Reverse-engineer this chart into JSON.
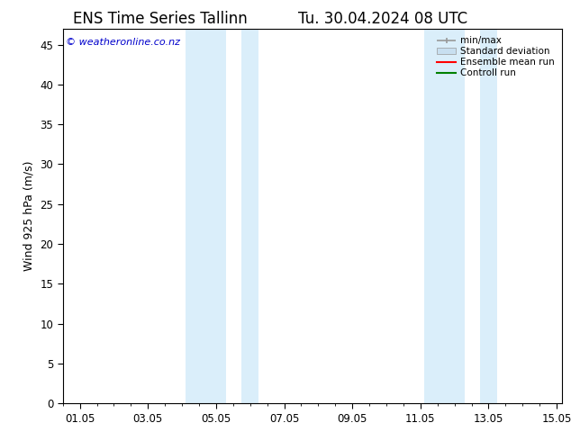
{
  "title_left": "ENS Time Series Tallinn",
  "title_right": "Tu. 30.04.2024 08 UTC",
  "ylabel": "Wind 925 hPa (m/s)",
  "watermark": "© weatheronline.co.nz",
  "xlim_start": 0.0,
  "xlim_end": 14.67,
  "ylim_bottom": 0,
  "ylim_top": 47,
  "yticks": [
    0,
    5,
    10,
    15,
    20,
    25,
    30,
    35,
    40,
    45
  ],
  "xtick_labels": [
    "01.05",
    "03.05",
    "05.05",
    "07.05",
    "09.05",
    "11.05",
    "13.05",
    "15.05"
  ],
  "xtick_positions": [
    0.5,
    2.5,
    4.5,
    6.5,
    8.5,
    10.5,
    12.5,
    14.5
  ],
  "shaded_bands": [
    {
      "x_start": 3.6,
      "x_end": 4.8,
      "color": "#daeefa"
    },
    {
      "x_start": 5.25,
      "x_end": 5.75,
      "color": "#daeefa"
    },
    {
      "x_start": 10.6,
      "x_end": 11.8,
      "color": "#daeefa"
    },
    {
      "x_start": 12.25,
      "x_end": 12.75,
      "color": "#daeefa"
    }
  ],
  "legend_items": [
    {
      "label": "min/max",
      "color": "#aaaaaa",
      "style": "minmax"
    },
    {
      "label": "Standard deviation",
      "color": "#c8dff0",
      "style": "rect"
    },
    {
      "label": "Ensemble mean run",
      "color": "red",
      "style": "line"
    },
    {
      "label": "Controll run",
      "color": "green",
      "style": "line"
    }
  ],
  "background_color": "#ffffff",
  "plot_bg_color": "#ffffff",
  "title_fontsize": 12,
  "axis_fontsize": 9,
  "tick_fontsize": 8.5,
  "legend_fontsize": 7.5,
  "watermark_color": "#0000cc",
  "border_color": "#000000"
}
